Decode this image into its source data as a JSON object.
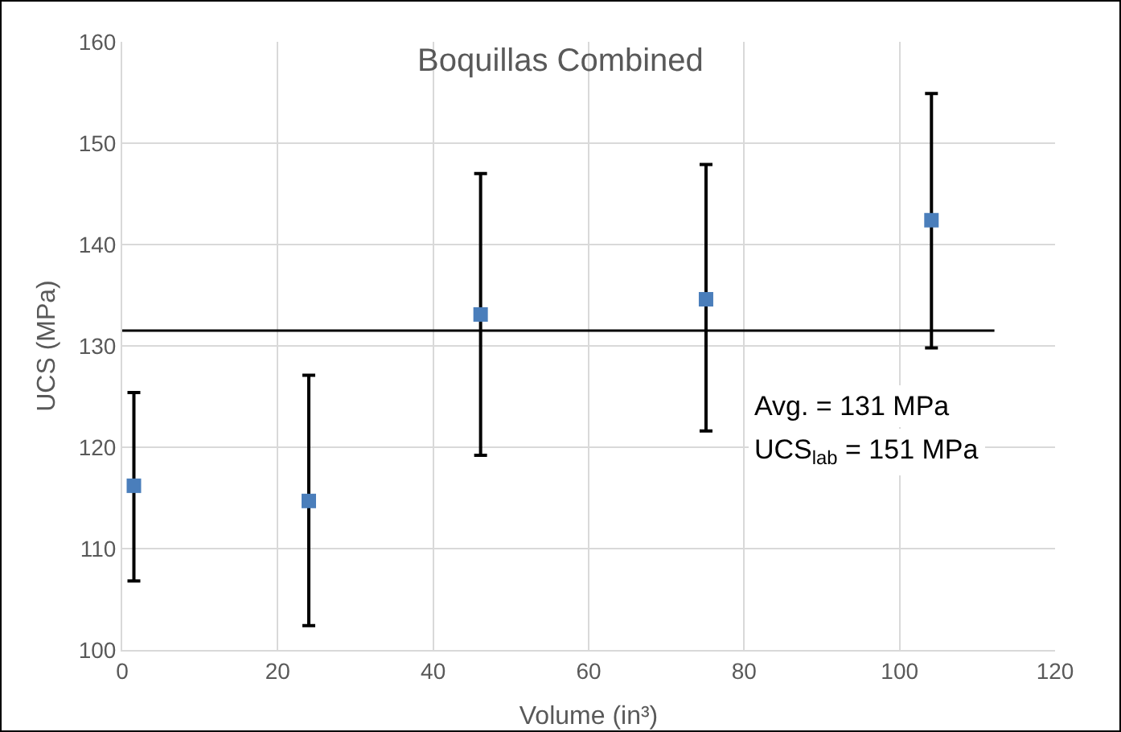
{
  "chart_data": {
    "type": "scatter",
    "title": "Boquillas Combined",
    "xlabel": "Volume (in³)",
    "ylabel": "UCS (MPa)",
    "series": [
      {
        "color": "#4a7ebb",
        "x": [
          1.5,
          24.0,
          46.1,
          75.1,
          104.1
        ],
        "values": [
          116.2,
          114.7,
          133.1,
          134.6,
          142.4
        ],
        "errors": [
          [
            106.8,
            125.4
          ],
          [
            102.4,
            127.1
          ],
          [
            119.2,
            147.0
          ],
          [
            121.6,
            147.9
          ],
          [
            129.8,
            154.9
          ]
        ],
        "marker": "square"
      },
      {
        "type": "line",
        "color": "#000000",
        "x": [
          0,
          112.2
        ],
        "values": [
          131.5,
          131.5
        ],
        "marker": "none",
        "line_style": "solid"
      }
    ],
    "annotations": [
      "Avg. = 131 MPa",
      "UCS$_{lab}$ = 151 MPa"
    ],
    "xlim": [
      0,
      120
    ],
    "xticks": [
      0,
      20,
      40,
      60,
      80,
      100,
      120
    ],
    "ylim": [
      100,
      160
    ],
    "yticks": [
      100,
      110,
      120,
      130,
      140,
      150,
      160
    ],
    "grid": true
  }
}
